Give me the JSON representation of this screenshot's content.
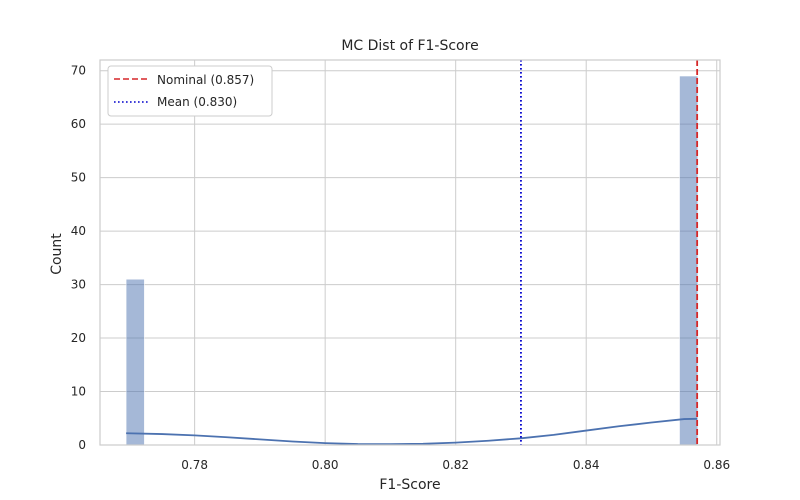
{
  "chart_data": {
    "type": "bar",
    "title": "MC Dist of F1-Score",
    "xlabel": "F1-Score",
    "ylabel": "Count",
    "xlim": [
      0.7655,
      0.8605
    ],
    "ylim": [
      0,
      72
    ],
    "xticks": [
      0.78,
      0.8,
      0.82,
      0.84,
      0.86
    ],
    "xtick_labels": [
      "0.78",
      "0.80",
      "0.82",
      "0.84",
      "0.86"
    ],
    "yticks": [
      0,
      10,
      20,
      30,
      40,
      50,
      60,
      70
    ],
    "ytick_labels": [
      "0",
      "10",
      "20",
      "30",
      "40",
      "50",
      "60",
      "70"
    ],
    "grid": true,
    "bars": [
      {
        "x0": 0.7695,
        "x1": 0.7723,
        "count": 31
      },
      {
        "x0": 0.8543,
        "x1": 0.8571,
        "count": 69
      }
    ],
    "kde": {
      "x": [
        0.7695,
        0.775,
        0.78,
        0.785,
        0.79,
        0.795,
        0.8,
        0.805,
        0.81,
        0.815,
        0.82,
        0.825,
        0.83,
        0.835,
        0.84,
        0.845,
        0.85,
        0.855,
        0.857
      ],
      "y": [
        2.2,
        2.05,
        1.8,
        1.45,
        1.05,
        0.65,
        0.35,
        0.18,
        0.15,
        0.22,
        0.45,
        0.8,
        1.25,
        1.9,
        2.7,
        3.5,
        4.2,
        4.85,
        4.9
      ]
    },
    "reference_lines": [
      {
        "name": "Nominal (0.857)",
        "x": 0.857,
        "style": "dashed",
        "color": "#d62728"
      },
      {
        "name": "Mean (0.830)",
        "x": 0.83,
        "style": "dotted",
        "color": "#0000cc"
      }
    ],
    "legend": {
      "placement": "top-left"
    },
    "colors": {
      "bar": "#4c72b0",
      "kde": "#4c72b0",
      "grid": "#cccccc",
      "frame": "#cccccc"
    }
  }
}
